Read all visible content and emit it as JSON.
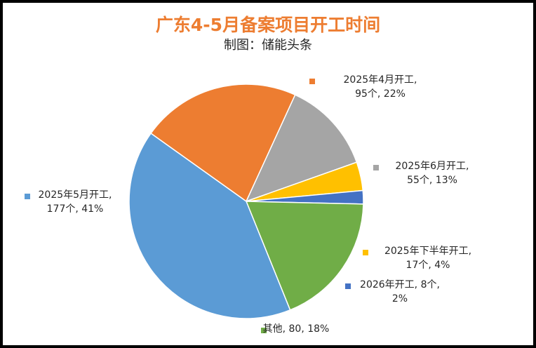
{
  "chart_data": {
    "type": "pie",
    "title": "广东4-5月备案项目开工时间",
    "subtitle": "制图：储能头条",
    "colors": {
      "title": "#ED7D31"
    },
    "slices": [
      {
        "name": "2025年4月开工",
        "value": 95,
        "percent": 22,
        "color": "#ED7D31",
        "label_lines": [
          "2025年4月开工,",
          "95个, 22%"
        ]
      },
      {
        "name": "2025年6月开工",
        "value": 55,
        "percent": 13,
        "color": "#A5A5A5",
        "label_lines": [
          "2025年6月开工,",
          "55个, 13%"
        ]
      },
      {
        "name": "2025年下半年开工",
        "value": 17,
        "percent": 4,
        "color": "#FFC000",
        "label_lines": [
          "2025年下半年开工,",
          "17个, 4%"
        ]
      },
      {
        "name": "2026年开工",
        "value": 8,
        "percent": 2,
        "color": "#4472C4",
        "label_lines": [
          "2026年开工, 8个,",
          "2%"
        ]
      },
      {
        "name": "其他",
        "value": 80,
        "percent": 18,
        "color": "#70AD47",
        "label_lines": [
          "其他, 80, 18%"
        ]
      },
      {
        "name": "2025年5月开工",
        "value": 177,
        "percent": 41,
        "color": "#5B9BD5",
        "label_lines": [
          "2025年5月开工,",
          "177个, 41%"
        ]
      }
    ]
  }
}
